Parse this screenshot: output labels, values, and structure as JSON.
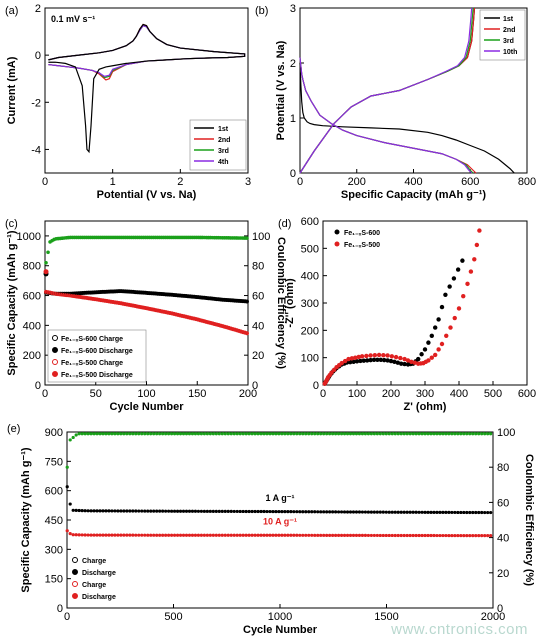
{
  "watermark": "www.cntronics.com",
  "chart_data": [
    {
      "panel_label": "(a)",
      "type": "line",
      "annotation": "0.1 mV s⁻¹",
      "xlabel": "Potential (V vs. Na)",
      "ylabel": "Current (mA)",
      "xlim": [
        0,
        3
      ],
      "ylim": [
        -5,
        2
      ],
      "xticks": [
        "0",
        "1",
        "2",
        "3"
      ],
      "yticks": [
        "-4",
        "-2",
        "0",
        "2"
      ],
      "legend": [
        "1st",
        "2nd",
        "3rd",
        "4th"
      ],
      "legend_pos": "bottom-right",
      "colors": [
        "#000000",
        "#e02020",
        "#1aa01a",
        "#8a2be2"
      ],
      "series": [
        {
          "name": "1st",
          "x": [
            0.05,
            0.15,
            0.3,
            0.45,
            0.55,
            0.6,
            0.62,
            0.65,
            0.68,
            0.72,
            0.8,
            0.9,
            1.0,
            1.2,
            1.5,
            1.8,
            2.1,
            2.4,
            2.7,
            2.95,
            2.95,
            2.5,
            2.0,
            1.8,
            1.65,
            1.55,
            1.5,
            1.45,
            1.4,
            1.35,
            1.3,
            1.2,
            1.0,
            0.8,
            0.5,
            0.2,
            0.05
          ],
          "y": [
            -0.3,
            -0.3,
            -0.35,
            -0.5,
            -1.3,
            -3.0,
            -4.0,
            -4.1,
            -3.0,
            -1.0,
            -0.6,
            -0.5,
            -0.45,
            -0.35,
            -0.25,
            -0.2,
            -0.15,
            -0.12,
            -0.1,
            -0.05,
            0.05,
            0.15,
            0.3,
            0.45,
            0.7,
            1.0,
            1.25,
            1.3,
            1.1,
            0.8,
            0.6,
            0.4,
            0.2,
            0.1,
            0.0,
            -0.1,
            -0.2
          ]
        },
        {
          "name": "2nd",
          "x": [
            0.05,
            0.2,
            0.35,
            0.5,
            0.7,
            0.8,
            0.9,
            0.95,
            1.0,
            1.2,
            1.5,
            1.8,
            2.1,
            2.4,
            2.7,
            2.95,
            2.95,
            2.5,
            2.0,
            1.8,
            1.65,
            1.55,
            1.5,
            1.45,
            1.4,
            1.35,
            1.3,
            1.2,
            1.0,
            0.8,
            0.5,
            0.2,
            0.05
          ],
          "y": [
            -0.4,
            -0.45,
            -0.5,
            -0.55,
            -0.65,
            -0.8,
            -1.05,
            -1.0,
            -0.7,
            -0.4,
            -0.25,
            -0.2,
            -0.15,
            -0.12,
            -0.1,
            -0.05,
            0.05,
            0.15,
            0.3,
            0.45,
            0.7,
            1.0,
            1.25,
            1.3,
            1.1,
            0.8,
            0.6,
            0.4,
            0.2,
            0.1,
            0.0,
            -0.1,
            -0.2
          ]
        },
        {
          "name": "3rd",
          "x": [
            0.05,
            0.2,
            0.35,
            0.5,
            0.7,
            0.8,
            0.88,
            0.95,
            1.0,
            1.2,
            1.5,
            1.8,
            2.1,
            2.4,
            2.7,
            2.95,
            2.95,
            2.5,
            2.0,
            1.8,
            1.65,
            1.55,
            1.5,
            1.45,
            1.4,
            1.35,
            1.3,
            1.2,
            1.0,
            0.8,
            0.5,
            0.2,
            0.05
          ],
          "y": [
            -0.4,
            -0.45,
            -0.5,
            -0.55,
            -0.65,
            -0.75,
            -0.95,
            -0.9,
            -0.65,
            -0.4,
            -0.25,
            -0.2,
            -0.15,
            -0.12,
            -0.1,
            -0.05,
            0.05,
            0.15,
            0.3,
            0.45,
            0.7,
            1.0,
            1.2,
            1.25,
            1.05,
            0.8,
            0.6,
            0.4,
            0.2,
            0.1,
            0.0,
            -0.1,
            -0.2
          ]
        },
        {
          "name": "4th",
          "x": [
            0.05,
            0.2,
            0.35,
            0.5,
            0.7,
            0.8,
            0.88,
            0.95,
            1.0,
            1.2,
            1.5,
            1.8,
            2.1,
            2.4,
            2.7,
            2.95,
            2.95,
            2.5,
            2.0,
            1.8,
            1.65,
            1.55,
            1.5,
            1.45,
            1.4,
            1.35,
            1.3,
            1.2,
            1.0,
            0.8,
            0.5,
            0.2,
            0.05
          ],
          "y": [
            -0.4,
            -0.45,
            -0.5,
            -0.55,
            -0.65,
            -0.75,
            -0.9,
            -0.85,
            -0.6,
            -0.4,
            -0.25,
            -0.2,
            -0.15,
            -0.12,
            -0.1,
            -0.05,
            0.05,
            0.15,
            0.3,
            0.45,
            0.7,
            1.0,
            1.2,
            1.25,
            1.05,
            0.8,
            0.6,
            0.4,
            0.2,
            0.1,
            0.0,
            -0.1,
            -0.2
          ]
        }
      ]
    },
    {
      "panel_label": "(b)",
      "type": "line",
      "xlabel": "Specific Capacity (mAh g⁻¹)",
      "ylabel": "Potential (V vs. Na)",
      "xlim": [
        0,
        800
      ],
      "ylim": [
        0,
        3
      ],
      "xticks": [
        "0",
        "200",
        "400",
        "600",
        "800"
      ],
      "yticks": [
        "0",
        "1",
        "2",
        "3"
      ],
      "legend": [
        "1st",
        "2nd",
        "3rd",
        "10th"
      ],
      "legend_pos": "top-right",
      "colors": [
        "#000000",
        "#e02020",
        "#1aa01a",
        "#8a2be2"
      ],
      "series": [
        {
          "name": "1st",
          "x": [
            0,
            3,
            6,
            10,
            15,
            25,
            35,
            50,
            80,
            150,
            250,
            350,
            450,
            500,
            550,
            600,
            650,
            700,
            740,
            755
          ],
          "y": [
            2.0,
            1.6,
            1.3,
            1.1,
            1.0,
            0.93,
            0.9,
            0.88,
            0.86,
            0.84,
            0.82,
            0.8,
            0.74,
            0.68,
            0.6,
            0.5,
            0.4,
            0.25,
            0.08,
            0.0
          ]
        },
        {
          "name": "1st-charge",
          "x": [
            0,
            50,
            120,
            180,
            250,
            350,
            450,
            520,
            560,
            590,
            605,
            612,
            615
          ],
          "y": [
            0.0,
            0.4,
            0.9,
            1.2,
            1.4,
            1.5,
            1.7,
            1.85,
            1.95,
            2.1,
            2.4,
            2.8,
            3.0
          ]
        },
        {
          "name": "2nd",
          "x": [
            0,
            3,
            6,
            10,
            20,
            40,
            70,
            110,
            150,
            200,
            300,
            400,
            450,
            500,
            550,
            590,
            610,
            620
          ],
          "y": [
            2.1,
            1.95,
            1.8,
            1.7,
            1.5,
            1.3,
            1.05,
            0.9,
            0.78,
            0.68,
            0.55,
            0.45,
            0.4,
            0.35,
            0.25,
            0.15,
            0.05,
            0.0
          ]
        },
        {
          "name": "2nd-charge",
          "x": [
            0,
            50,
            120,
            180,
            250,
            350,
            450,
            520,
            560,
            590,
            605,
            612,
            615
          ],
          "y": [
            0.0,
            0.4,
            0.9,
            1.2,
            1.4,
            1.5,
            1.7,
            1.85,
            1.95,
            2.1,
            2.4,
            2.8,
            3.0
          ]
        },
        {
          "name": "3rd",
          "x": [
            0,
            3,
            6,
            10,
            20,
            40,
            70,
            110,
            150,
            200,
            300,
            400,
            450,
            500,
            550,
            585,
            600,
            610
          ],
          "y": [
            2.1,
            1.95,
            1.8,
            1.7,
            1.5,
            1.3,
            1.05,
            0.9,
            0.78,
            0.68,
            0.55,
            0.45,
            0.4,
            0.35,
            0.25,
            0.15,
            0.05,
            0.0
          ]
        },
        {
          "name": "3rd-charge",
          "x": [
            0,
            50,
            120,
            180,
            250,
            350,
            450,
            520,
            560,
            585,
            600,
            607,
            610
          ],
          "y": [
            0.0,
            0.4,
            0.9,
            1.2,
            1.4,
            1.5,
            1.7,
            1.85,
            1.95,
            2.1,
            2.4,
            2.8,
            3.0
          ]
        },
        {
          "name": "10th",
          "x": [
            0,
            3,
            6,
            10,
            20,
            40,
            70,
            110,
            150,
            200,
            300,
            400,
            450,
            500,
            550,
            580,
            595,
            605
          ],
          "y": [
            2.1,
            1.95,
            1.8,
            1.7,
            1.5,
            1.3,
            1.05,
            0.9,
            0.78,
            0.68,
            0.55,
            0.45,
            0.4,
            0.35,
            0.25,
            0.15,
            0.05,
            0.0
          ]
        },
        {
          "name": "10th-charge",
          "x": [
            0,
            50,
            120,
            180,
            250,
            350,
            450,
            515,
            555,
            580,
            595,
            602,
            605
          ],
          "y": [
            0.0,
            0.4,
            0.9,
            1.2,
            1.4,
            1.5,
            1.7,
            1.85,
            1.95,
            2.1,
            2.4,
            2.8,
            3.0
          ]
        }
      ]
    },
    {
      "panel_label": "(c)",
      "type": "scatter",
      "xlabel": "Cycle Number",
      "ylabel": "Specific Capacity (mAh g⁻¹)",
      "ylabel2": "Coulombic Efficiency (%)",
      "xlim": [
        0,
        200
      ],
      "ylim": [
        0,
        1100
      ],
      "ylim2": [
        0,
        110
      ],
      "xticks": [
        "0",
        "50",
        "100",
        "150",
        "200"
      ],
      "yticks": [
        "0",
        "200",
        "400",
        "600",
        "800",
        "1000"
      ],
      "yticks2": [
        "0",
        "20",
        "40",
        "60",
        "80",
        "100"
      ],
      "legend": [
        "Fe₁₋ₓS-600 Charge",
        "Fe₁₋ₓS-600 Discharge",
        "Fe₁₋ₓS-500 Charge",
        "Fe₁₋ₓS-500 Discharge"
      ],
      "legend_pos": "bottom-left",
      "colors": [
        "#000000",
        "#e02020",
        "#1aa01a"
      ],
      "series": [
        {
          "name": "Fe₁₋ₓS-600 Discharge",
          "x": [
            1,
            10,
            25,
            50,
            75,
            100,
            125,
            150,
            175,
            200
          ],
          "y": [
            620,
            612,
            612,
            622,
            630,
            618,
            605,
            590,
            572,
            560
          ]
        },
        {
          "name": "Fe₁₋ₓS-500 Discharge",
          "x": [
            1,
            10,
            25,
            50,
            75,
            100,
            125,
            150,
            175,
            200
          ],
          "y": [
            625,
            612,
            600,
            575,
            548,
            515,
            480,
            440,
            395,
            345
          ]
        },
        {
          "name": "Coulombic Efficiency",
          "x": [
            1,
            5,
            10,
            25,
            50,
            100,
            150,
            200
          ],
          "y": [
            82,
            96,
            98,
            99,
            99,
            99,
            99,
            98.5
          ]
        }
      ],
      "first_cycle_outliers": [
        {
          "x": 1,
          "y": 745
        },
        {
          "x": 1,
          "y": 760
        }
      ]
    },
    {
      "panel_label": "(d)",
      "type": "scatter",
      "xlabel": "Z' (ohm)",
      "ylabel": "-Z'' (ohm)",
      "xlim": [
        0,
        600
      ],
      "ylim": [
        0,
        600
      ],
      "xticks": [
        "0",
        "100",
        "200",
        "300",
        "400",
        "500",
        "600"
      ],
      "yticks": [
        "0",
        "100",
        "200",
        "300",
        "400",
        "500",
        "600"
      ],
      "legend": [
        "Fe₁₋ₓS-600",
        "Fe₁₋ₓS-500"
      ],
      "legend_pos": "top-left",
      "colors": [
        "#000000",
        "#e02020"
      ],
      "series": [
        {
          "name": "Fe₁₋ₓS-600",
          "x": [
            5,
            10,
            15,
            20,
            30,
            40,
            55,
            70,
            90,
            110,
            130,
            150,
            170,
            190,
            210,
            230,
            250,
            265,
            280,
            300,
            320,
            340,
            360,
            385,
            410
          ],
          "y": [
            5,
            15,
            25,
            35,
            50,
            62,
            75,
            82,
            85,
            88,
            90,
            92,
            92,
            90,
            85,
            78,
            75,
            78,
            95,
            130,
            180,
            240,
            330,
            390,
            455
          ]
        },
        {
          "name": "Fe₁₋ₓS-500",
          "x": [
            5,
            10,
            15,
            25,
            40,
            55,
            75,
            95,
            115,
            140,
            165,
            190,
            215,
            240,
            260,
            280,
            295,
            310,
            330,
            350,
            375,
            400,
            425,
            445,
            460
          ],
          "y": [
            5,
            15,
            28,
            45,
            65,
            80,
            95,
            100,
            105,
            108,
            110,
            108,
            102,
            95,
            85,
            78,
            80,
            90,
            110,
            150,
            210,
            280,
            370,
            460,
            565
          ]
        }
      ]
    },
    {
      "panel_label": "(e)",
      "type": "scatter",
      "xlabel": "Cycle Number",
      "ylabel": "Specific Capacity (mAh g⁻¹)",
      "ylabel2": "Coulombic Efficiency (%)",
      "xlim": [
        0,
        2000
      ],
      "ylim": [
        0,
        900
      ],
      "ylim2": [
        0,
        100
      ],
      "xticks": [
        "0",
        "500",
        "1000",
        "1500",
        "2000"
      ],
      "yticks": [
        "0",
        "150",
        "300",
        "450",
        "600",
        "750",
        "900"
      ],
      "yticks2": [
        "0",
        "20",
        "40",
        "60",
        "80",
        "100"
      ],
      "annotations": [
        "1 A g⁻¹",
        "10 A g⁻¹"
      ],
      "legend": [
        "Charge",
        "Discharge",
        "Charge",
        "Discharge"
      ],
      "legend_pos": "bottom-left",
      "colors": [
        "#000000",
        "#e02020",
        "#1aa01a"
      ],
      "series": [
        {
          "name": "1 A g⁻¹",
          "x": [
            1,
            20,
            100,
            500,
            1000,
            1500,
            2000
          ],
          "y": [
            620,
            500,
            497,
            495,
            493,
            490,
            488
          ]
        },
        {
          "name": "10 A g⁻¹",
          "x": [
            1,
            20,
            100,
            500,
            1000,
            1500,
            2000
          ],
          "y": [
            395,
            375,
            373,
            372,
            372,
            371,
            370
          ]
        },
        {
          "name": "Coulombic Efficiency",
          "x": [
            1,
            10,
            50,
            500,
            1000,
            1500,
            2000
          ],
          "y": [
            80,
            95,
            99,
            99,
            99,
            99,
            99
          ]
        }
      ]
    }
  ]
}
